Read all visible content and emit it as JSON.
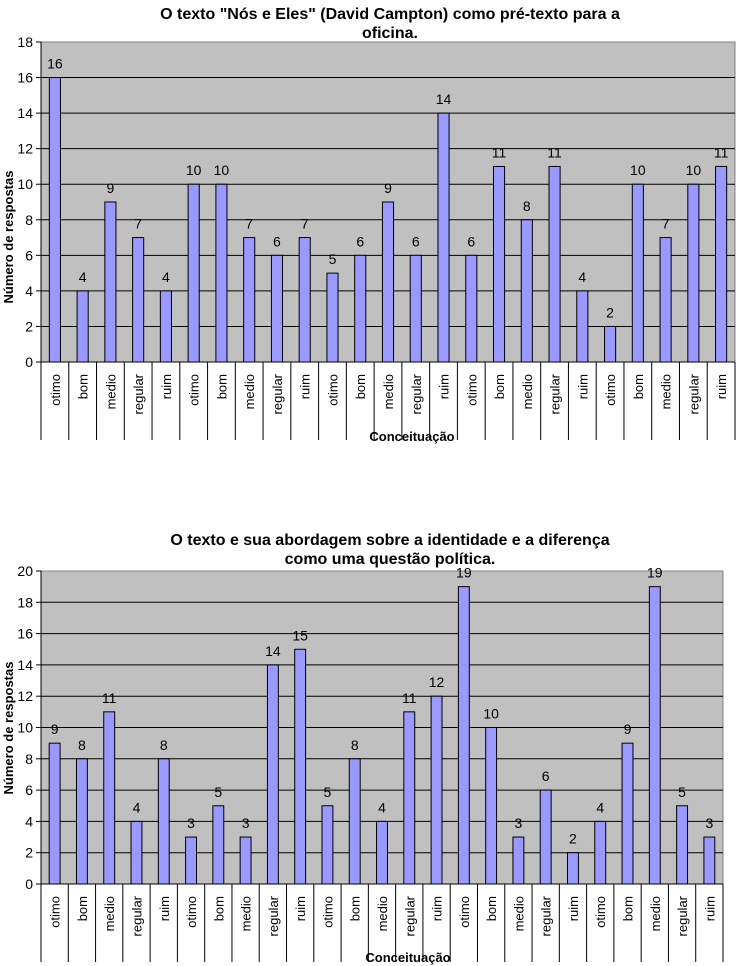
{
  "chart_data": [
    {
      "type": "bar",
      "title_lines": [
        "O texto \"Nós e Eles\" (David Campton) como pré-texto para a",
        "oficina."
      ],
      "xlabel": "Conceituação",
      "ylabel": "Número de respostas",
      "ylim": [
        0,
        18
      ],
      "yticks": [
        0,
        2,
        4,
        6,
        8,
        10,
        12,
        14,
        16,
        18
      ],
      "grid": true,
      "legend": "none",
      "colors": {
        "bar": "#9999ff",
        "plot_bg": "#c0c0c0"
      },
      "categories": [
        "otimo",
        "bom",
        "medio",
        "regular",
        "ruim",
        "otimo",
        "bom",
        "medio",
        "regular",
        "ruim",
        "otimo",
        "bom",
        "medio",
        "regular",
        "ruim",
        "otimo",
        "bom",
        "medio",
        "regular",
        "ruim",
        "otimo",
        "bom",
        "medio",
        "regular",
        "ruim"
      ],
      "values": [
        16,
        4,
        9,
        7,
        4,
        10,
        10,
        7,
        6,
        7,
        5,
        6,
        9,
        6,
        14,
        6,
        11,
        8,
        11,
        4,
        2,
        10,
        7,
        10,
        11
      ]
    },
    {
      "type": "bar",
      "title_lines": [
        "O texto e sua abordagem sobre a identidade e a diferença",
        "como uma questão política."
      ],
      "xlabel": "Conceituação",
      "ylabel": "Número de respostas",
      "ylim": [
        0,
        20
      ],
      "yticks": [
        0,
        2,
        4,
        6,
        8,
        10,
        12,
        14,
        16,
        18,
        20
      ],
      "grid": true,
      "legend": "none",
      "colors": {
        "bar": "#9999ff",
        "plot_bg": "#c0c0c0"
      },
      "categories": [
        "otimo",
        "bom",
        "medio",
        "regular",
        "ruim",
        "otimo",
        "bom",
        "medio",
        "regular",
        "ruim",
        "otimo",
        "bom",
        "medio",
        "regular",
        "ruim",
        "otimo",
        "bom",
        "medio",
        "regular",
        "ruim",
        "otimo",
        "bom",
        "medio",
        "regular",
        "ruim"
      ],
      "values": [
        9,
        8,
        11,
        4,
        8,
        3,
        5,
        3,
        14,
        15,
        5,
        8,
        4,
        11,
        12,
        19,
        10,
        3,
        6,
        2,
        4,
        9,
        19,
        5,
        3
      ]
    }
  ]
}
